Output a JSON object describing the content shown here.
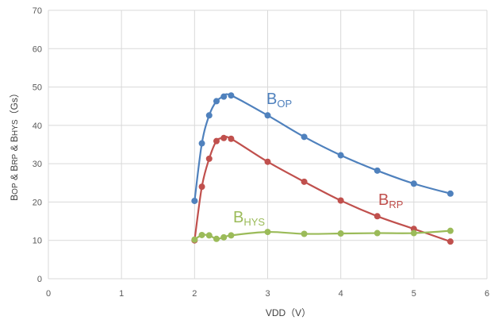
{
  "chart_data": {
    "type": "line",
    "xlabel": "VDD（V）",
    "ylabel_parts": [
      {
        "text": "B",
        "sub": "OP"
      },
      {
        "text": " & B",
        "sub": "RP"
      },
      {
        "text": " & B",
        "sub": "HYS"
      },
      {
        "text": "（Gs）",
        "sub": ""
      }
    ],
    "xlim": [
      0,
      6
    ],
    "ylim": [
      0,
      70
    ],
    "xticks": [
      0,
      1,
      2,
      3,
      4,
      5,
      6
    ],
    "yticks": [
      0,
      10,
      20,
      30,
      40,
      50,
      60,
      70
    ],
    "grid": true,
    "series": [
      {
        "label": {
          "text": "B",
          "sub": "OP"
        },
        "color": "#4f81bd",
        "points": [
          [
            2.0,
            20.3
          ],
          [
            2.1,
            35.3
          ],
          [
            2.2,
            42.6
          ],
          [
            2.3,
            46.3
          ],
          [
            2.4,
            47.5
          ],
          [
            2.5,
            47.8
          ],
          [
            3.0,
            42.6
          ],
          [
            3.5,
            37.0
          ],
          [
            4.0,
            32.2
          ],
          [
            4.5,
            28.2
          ],
          [
            5.0,
            24.8
          ],
          [
            5.5,
            22.2
          ]
        ]
      },
      {
        "label": {
          "text": "B",
          "sub": "RP"
        },
        "color": "#c0504d",
        "points": [
          [
            2.0,
            10.0
          ],
          [
            2.1,
            24.0
          ],
          [
            2.2,
            31.3
          ],
          [
            2.3,
            35.9
          ],
          [
            2.4,
            36.7
          ],
          [
            2.5,
            36.5
          ],
          [
            3.0,
            30.5
          ],
          [
            3.5,
            25.3
          ],
          [
            4.0,
            20.4
          ],
          [
            4.5,
            16.3
          ],
          [
            5.0,
            13.0
          ],
          [
            5.5,
            9.7
          ]
        ]
      },
      {
        "label": {
          "text": "B",
          "sub": "HYS"
        },
        "color": "#9bbb59",
        "points": [
          [
            2.0,
            10.2
          ],
          [
            2.1,
            11.4
          ],
          [
            2.2,
            11.3
          ],
          [
            2.3,
            10.4
          ],
          [
            2.4,
            10.8
          ],
          [
            2.5,
            11.3
          ],
          [
            3.0,
            12.2
          ],
          [
            3.5,
            11.7
          ],
          [
            4.0,
            11.8
          ],
          [
            4.5,
            11.9
          ],
          [
            5.0,
            11.9
          ],
          [
            5.5,
            12.5
          ]
        ]
      }
    ]
  }
}
